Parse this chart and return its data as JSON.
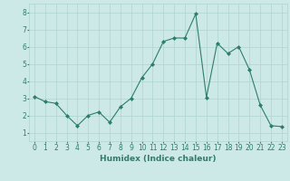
{
  "x": [
    0,
    1,
    2,
    3,
    4,
    5,
    6,
    7,
    8,
    9,
    10,
    11,
    12,
    13,
    14,
    15,
    16,
    17,
    18,
    19,
    20,
    21,
    22,
    23
  ],
  "y": [
    3.1,
    2.8,
    2.7,
    2.0,
    1.4,
    2.0,
    2.2,
    1.6,
    2.5,
    3.0,
    4.2,
    5.0,
    6.3,
    6.5,
    6.5,
    7.9,
    3.05,
    6.2,
    5.6,
    6.0,
    4.65,
    2.6,
    1.4,
    1.35
  ],
  "line_color": "#2e7d6e",
  "marker": "D",
  "marker_size": 2.0,
  "bg_color": "#cce9e7",
  "grid_color": "#afd4d1",
  "xlabel": "Humidex (Indice chaleur)",
  "ylim": [
    0.5,
    8.5
  ],
  "xlim": [
    -0.5,
    23.5
  ],
  "yticks": [
    1,
    2,
    3,
    4,
    5,
    6,
    7,
    8
  ],
  "xticks": [
    0,
    1,
    2,
    3,
    4,
    5,
    6,
    7,
    8,
    9,
    10,
    11,
    12,
    13,
    14,
    15,
    16,
    17,
    18,
    19,
    20,
    21,
    22,
    23
  ],
  "tick_color": "#2e7d6e",
  "label_fontsize": 6.5,
  "tick_fontsize": 5.5,
  "line_width": 0.8
}
